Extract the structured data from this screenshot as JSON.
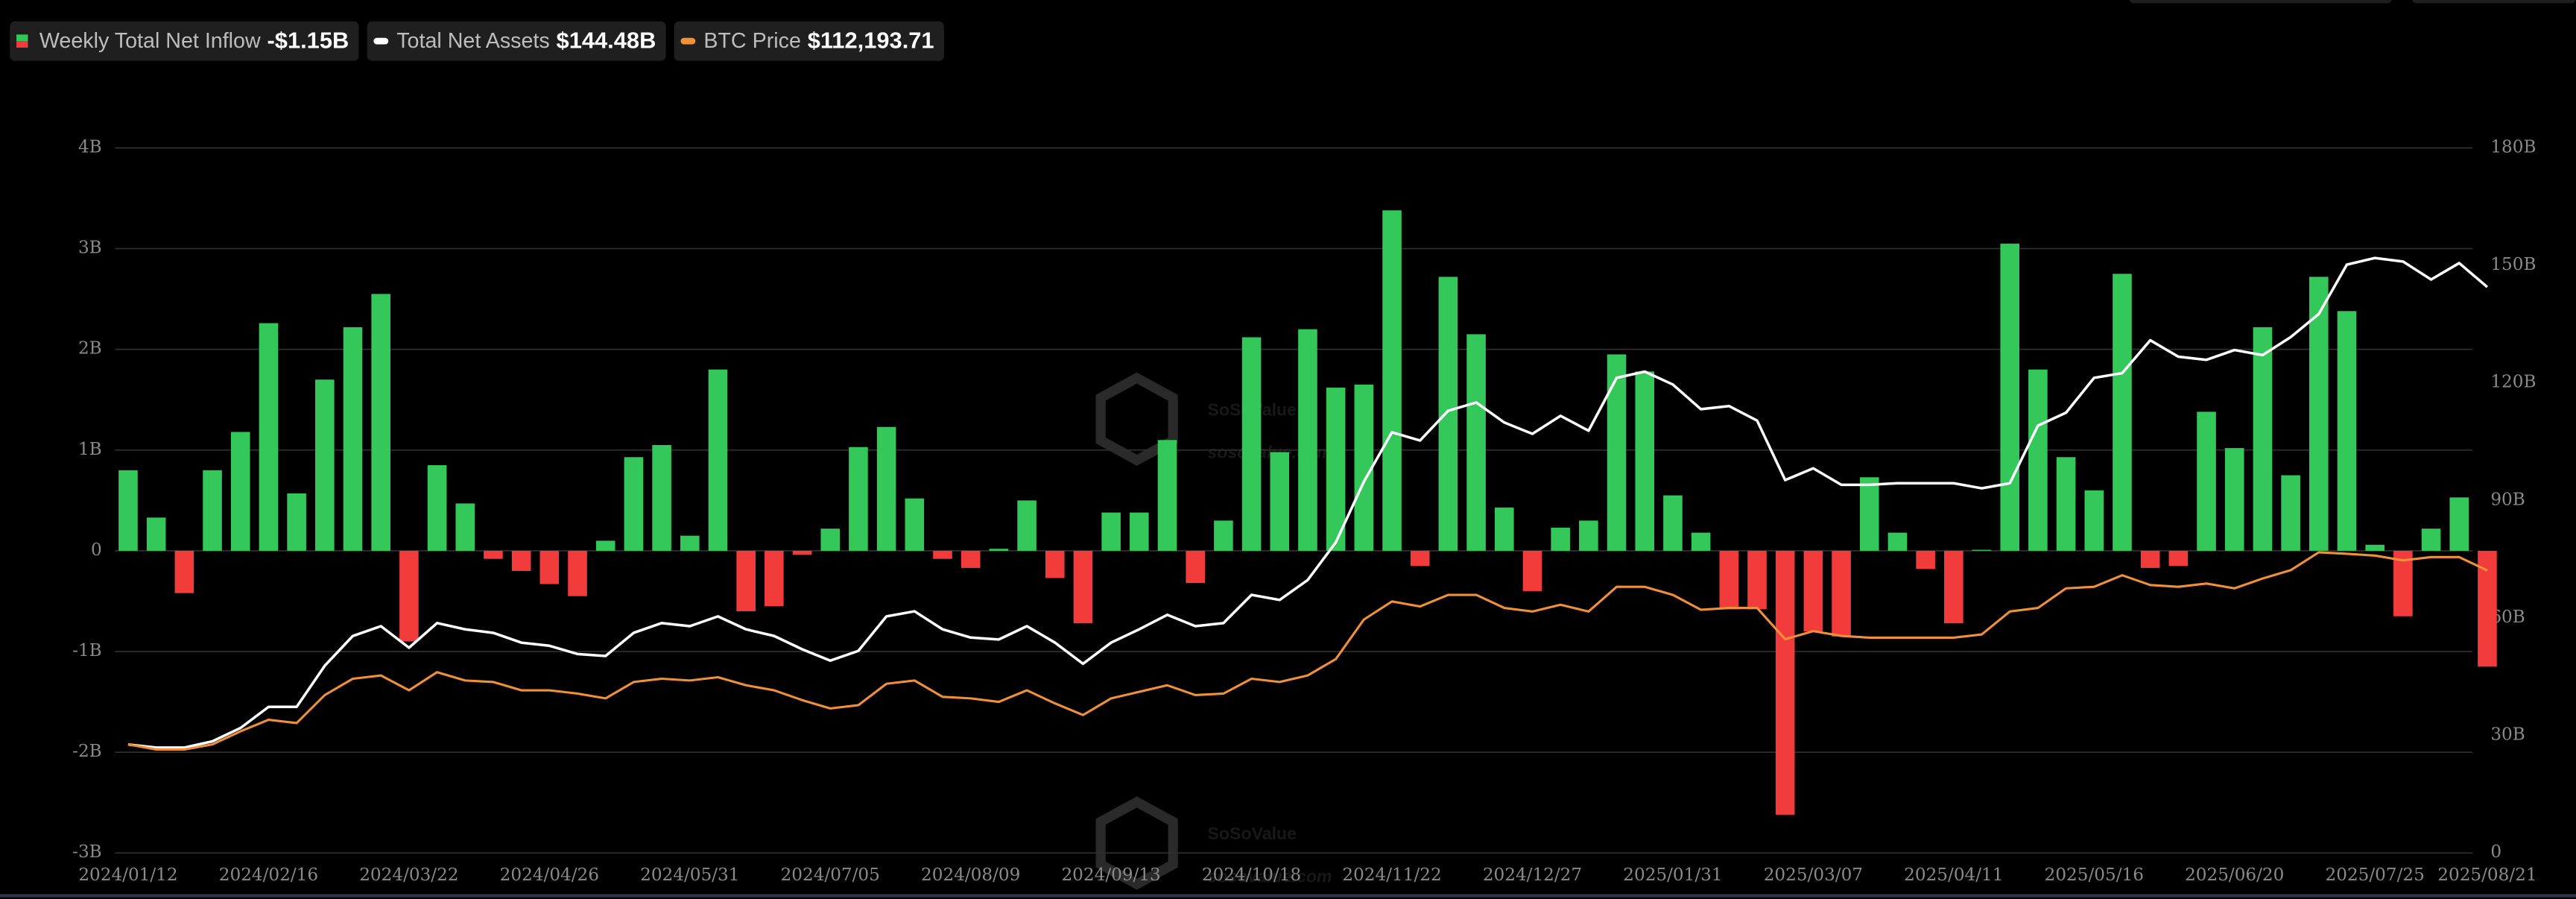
{
  "chart_data": {
    "type": "bar",
    "watermark": [
      "SoSoValue",
      "sosovalue.com"
    ],
    "categories": [
      "2024/01/12",
      null,
      null,
      null,
      null,
      "2024/02/16",
      null,
      null,
      null,
      null,
      "2024/03/22",
      null,
      null,
      null,
      null,
      "2024/04/26",
      null,
      null,
      null,
      null,
      "2024/05/31",
      null,
      null,
      null,
      null,
      "2024/07/05",
      null,
      null,
      null,
      null,
      "2024/08/09",
      null,
      null,
      null,
      null,
      "2024/09/13",
      null,
      null,
      null,
      null,
      "2024/10/18",
      null,
      null,
      null,
      null,
      "2024/11/22",
      null,
      null,
      null,
      null,
      "2024/12/27",
      null,
      null,
      null,
      null,
      "2025/01/31",
      null,
      null,
      null,
      null,
      "2025/03/07",
      null,
      null,
      null,
      null,
      "2025/04/11",
      null,
      null,
      null,
      null,
      "2025/05/16",
      null,
      null,
      null,
      null,
      "2025/06/20",
      null,
      null,
      null,
      null,
      "2025/07/25",
      null,
      null,
      null,
      "2025/08/21"
    ],
    "series": [
      {
        "name": "Weekly Total Net Inflow",
        "latest_label": "-$1.15B",
        "positive_color": "#34c759",
        "negative_color": "#f23c3c",
        "values": [
          0.8,
          0.33,
          -0.42,
          0.8,
          1.18,
          2.26,
          0.57,
          1.7,
          2.22,
          2.55,
          -0.9,
          0.85,
          0.47,
          -0.08,
          -0.2,
          -0.33,
          -0.45,
          0.1,
          0.93,
          1.05,
          0.15,
          1.8,
          -0.6,
          -0.55,
          -0.04,
          0.22,
          1.03,
          1.23,
          0.52,
          -0.08,
          -0.17,
          0.02,
          0.5,
          -0.27,
          -0.72,
          0.38,
          0.38,
          1.1,
          -0.32,
          0.3,
          2.12,
          0.98,
          2.2,
          1.62,
          1.65,
          3.38,
          -0.15,
          2.72,
          2.15,
          0.43,
          -0.4,
          0.23,
          0.3,
          1.95,
          1.78,
          0.55,
          0.18,
          -0.58,
          -0.58,
          -2.62,
          -0.8,
          -0.85,
          0.73,
          0.18,
          -0.18,
          -0.72,
          0.01,
          3.05,
          1.8,
          0.93,
          0.6,
          2.75,
          -0.17,
          -0.15,
          1.38,
          1.02,
          2.22,
          0.75,
          2.72,
          2.38,
          0.06,
          -0.65,
          0.22,
          0.53,
          -1.15
        ]
      },
      {
        "name": "Total Net Assets",
        "latest_label": "$144.48B",
        "color": "#ffffff",
        "axis": "y2",
        "values": [
          27.7,
          26.9,
          26.9,
          28.5,
          31.9,
          37.3,
          37.3,
          47.8,
          55.4,
          57.9,
          52.4,
          58.7,
          57.1,
          56.2,
          53.7,
          52.9,
          50.8,
          50.3,
          56.2,
          58.7,
          57.9,
          60.4,
          57.1,
          55.4,
          52,
          49.1,
          51.6,
          60.4,
          61.7,
          57.1,
          55,
          54.5,
          57.9,
          53.7,
          48.3,
          53.7,
          57.1,
          60.8,
          57.9,
          58.7,
          65.9,
          64.6,
          69.7,
          79.3,
          94.8,
          107.4,
          105.3,
          112.9,
          115,
          109.9,
          107,
          111.6,
          107.8,
          121.3,
          122.9,
          119.6,
          113.3,
          114.1,
          110.4,
          95.2,
          98.2,
          94,
          94,
          94.4,
          94.4,
          94.4,
          93.1,
          94.4,
          109.1,
          112.4,
          121.3,
          122.5,
          130.9,
          126.7,
          125.9,
          128.4,
          127.1,
          131.7,
          137.6,
          150.2,
          151.9,
          151,
          146.4,
          150.6,
          144.48
        ]
      },
      {
        "name": "BTC Price",
        "latest_label": "$112,193.71",
        "color": "#f0913a",
        "axis": "y3",
        "values": [
          43100,
          41100,
          41100,
          43100,
          48300,
          52900,
          51600,
          62700,
          69200,
          70500,
          64600,
          71800,
          68500,
          67900,
          64600,
          64600,
          63300,
          61400,
          67900,
          69200,
          68500,
          69800,
          66600,
          64600,
          60700,
          57400,
          58700,
          67200,
          68500,
          62000,
          61400,
          60000,
          64600,
          59400,
          54800,
          61400,
          64000,
          66600,
          62700,
          63300,
          69200,
          67900,
          70500,
          77000,
          92700,
          99900,
          97900,
          102500,
          102500,
          97300,
          95900,
          98600,
          95900,
          105700,
          105700,
          102500,
          96600,
          97300,
          97300,
          84900,
          88100,
          86200,
          85500,
          85500,
          85500,
          85500,
          86800,
          95900,
          97300,
          105100,
          105700,
          110300,
          106400,
          105700,
          107000,
          105100,
          109000,
          112300,
          119400,
          118800,
          118100,
          116200,
          117500,
          117500,
          112193.71
        ]
      }
    ],
    "ylim": [
      -3,
      4
    ],
    "yticks": [
      {
        "value": -3,
        "label": "-3B"
      },
      {
        "value": -2,
        "label": "-2B"
      },
      {
        "value": -1,
        "label": "-1B"
      },
      0,
      {
        "value": 1,
        "label": "1B"
      },
      {
        "value": 2,
        "label": "2B"
      },
      {
        "value": 3,
        "label": "3B"
      },
      {
        "value": 4,
        "label": "4B"
      }
    ],
    "y2lim": [
      0,
      180
    ],
    "y2ticks": [
      0,
      {
        "value": 30,
        "label": "30B"
      },
      {
        "value": 60,
        "label": "60B"
      },
      {
        "value": 90,
        "label": "90B"
      },
      {
        "value": 120,
        "label": "120B"
      },
      {
        "value": 150,
        "label": "150B"
      },
      {
        "value": 180,
        "label": "180B"
      }
    ],
    "y3lim": [
      0,
      280000
    ],
    "grid": true
  }
}
